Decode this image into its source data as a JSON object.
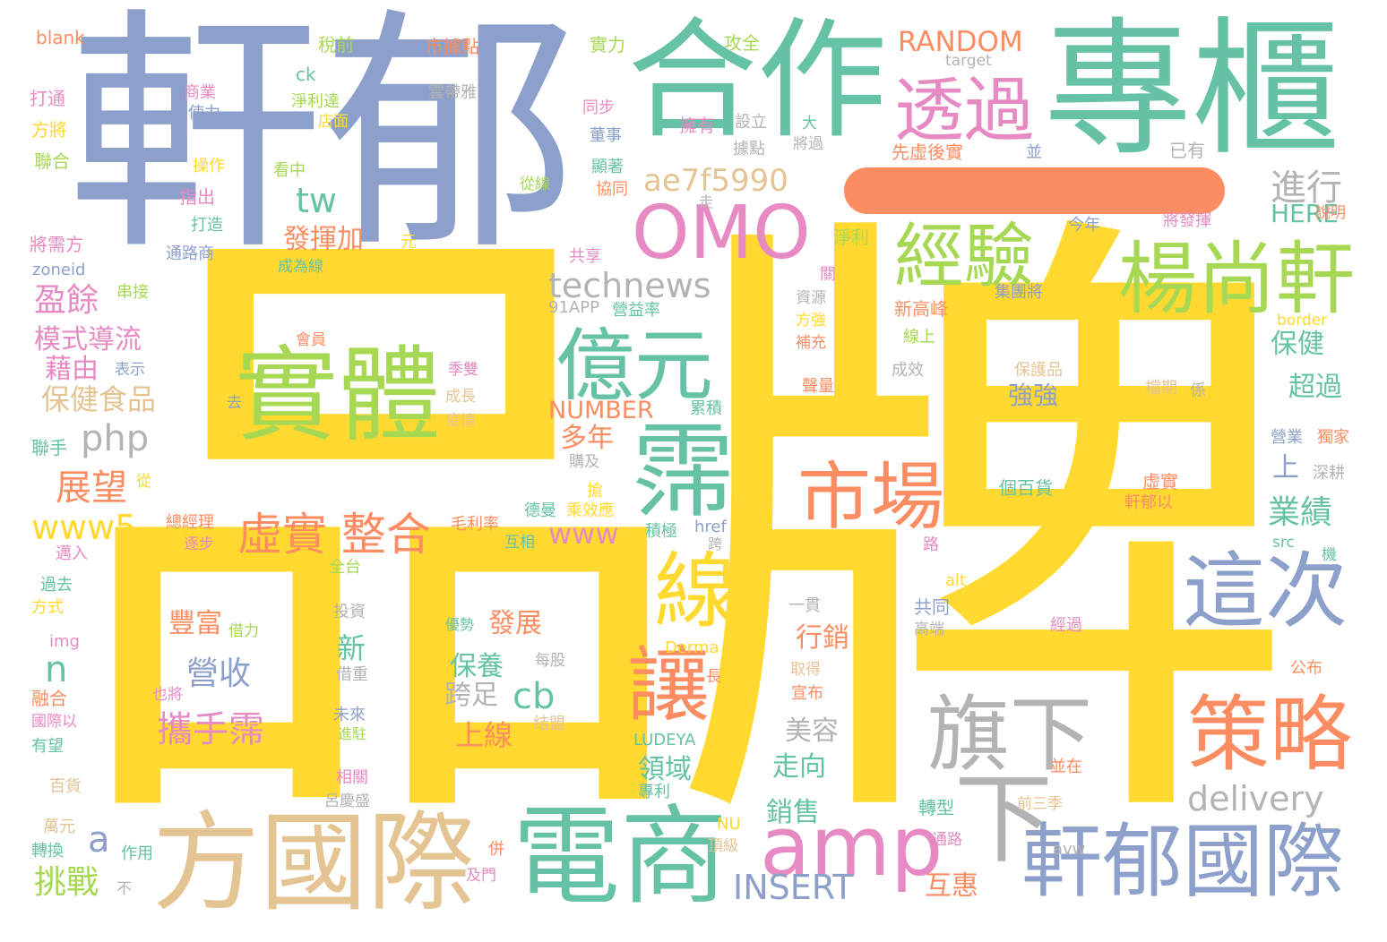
{
  "colors": {
    "background": "#ffffff",
    "yellow": "#FFD92F",
    "blue": "#8DA0CB",
    "teal": "#66C2A5",
    "orange": "#FC8D62",
    "pink": "#E78AC3",
    "green": "#A6D854",
    "tan": "#E5C494",
    "gray": "#B3B3B3"
  },
  "words": [
    {
      "text": "品牌",
      "color": "#FFD92F"
    },
    {
      "text": "軒郁",
      "color": "#8DA0CB"
    },
    {
      "text": "合作",
      "color": "#66C2A5"
    },
    {
      "text": "專櫃",
      "color": "#66C2A5"
    },
    {
      "text": "一",
      "color": "#FC8D62"
    },
    {
      "text": "實體",
      "color": "#A6D854"
    },
    {
      "text": "OMO",
      "color": "#E78AC3"
    },
    {
      "text": "透過",
      "color": "#E78AC3"
    },
    {
      "text": "經驗",
      "color": "#A6D854"
    },
    {
      "text": "楊尚軒",
      "color": "#A6D854"
    },
    {
      "text": "億元",
      "color": "#66C2A5"
    },
    {
      "text": "霈",
      "color": "#66C2A5"
    },
    {
      "text": "方國際",
      "color": "#E5C494"
    },
    {
      "text": "電商",
      "color": "#66C2A5"
    },
    {
      "text": "軒郁國際",
      "color": "#8DA0CB"
    },
    {
      "text": "策略",
      "color": "#FC8D62"
    },
    {
      "text": "旗下",
      "color": "#B3B3B3"
    },
    {
      "text": "這次",
      "color": "#8DA0CB"
    },
    {
      "text": "市場",
      "color": "#FC8D62"
    },
    {
      "text": "線",
      "color": "#FFD92F"
    },
    {
      "text": "讓",
      "color": "#FC8D62"
    },
    {
      "text": "amp",
      "color": "#E78AC3"
    },
    {
      "text": "下",
      "color": "#B3B3B3"
    },
    {
      "text": "虛實 整合",
      "color": "#FC8D62"
    },
    {
      "text": "ae7f5990",
      "color": "#E5C494"
    },
    {
      "text": "進行",
      "color": "#B3B3B3"
    },
    {
      "text": "technews",
      "color": "#B3B3B3"
    },
    {
      "text": "RANDOM",
      "color": "#FC8D62"
    },
    {
      "text": "delivery",
      "color": "#B3B3B3"
    },
    {
      "text": "INSERT",
      "color": "#8DA0CB"
    },
    {
      "text": "www5",
      "color": "#FFD92F"
    },
    {
      "text": "www",
      "color": "#E78AC3"
    },
    {
      "text": "php",
      "color": "#B3B3B3"
    },
    {
      "text": "tw",
      "color": "#66C2A5"
    },
    {
      "text": "cb",
      "color": "#66C2A5"
    },
    {
      "text": "n",
      "color": "#66C2A5"
    },
    {
      "text": "a",
      "color": "#8DA0CB"
    },
    {
      "text": "發揮加",
      "color": "#FC8D62"
    },
    {
      "text": "盈餘",
      "color": "#E78AC3"
    },
    {
      "text": "模式導流",
      "color": "#E78AC3"
    },
    {
      "text": "藉由",
      "color": "#E78AC3"
    },
    {
      "text": "保健食品",
      "color": "#E5C494"
    },
    {
      "text": "展望",
      "color": "#FC8D62"
    },
    {
      "text": "挑戰",
      "color": "#A6D854"
    },
    {
      "text": "營收",
      "color": "#8DA0CB"
    },
    {
      "text": "攜手霈",
      "color": "#E78AC3"
    },
    {
      "text": "豐富",
      "color": "#FC8D62"
    },
    {
      "text": "發展",
      "color": "#FC8D62"
    },
    {
      "text": "保養",
      "color": "#66C2A5"
    },
    {
      "text": "跨足",
      "color": "#B3B3B3"
    },
    {
      "text": "上線",
      "color": "#FC8D62"
    },
    {
      "text": "新",
      "color": "#66C2A5"
    },
    {
      "text": "行銷",
      "color": "#FC8D62"
    },
    {
      "text": "美容",
      "color": "#B3B3B3"
    },
    {
      "text": "走向",
      "color": "#66C2A5"
    },
    {
      "text": "銷售",
      "color": "#66C2A5"
    },
    {
      "text": "領域",
      "color": "#66C2A5"
    },
    {
      "text": "互惠",
      "color": "#FC8D62"
    },
    {
      "text": "多年",
      "color": "#FC8D62"
    },
    {
      "text": "NUMBER",
      "color": "#FC8D62"
    },
    {
      "text": "業績",
      "color": "#66C2A5"
    },
    {
      "text": "上",
      "color": "#8DA0CB"
    },
    {
      "text": "超過",
      "color": "#66C2A5"
    },
    {
      "text": "保健",
      "color": "#66C2A5"
    },
    {
      "text": "HERE",
      "color": "#66C2A5"
    },
    {
      "text": "強強",
      "color": "#8DA0CB"
    },
    {
      "text": "個百貨",
      "color": "#66C2A5"
    },
    {
      "text": "虛實",
      "color": "#FC8D62"
    },
    {
      "text": "軒郁以",
      "color": "#FC8D62"
    },
    {
      "text": "保護品",
      "color": "#E5C494"
    },
    {
      "text": "檔期",
      "color": "#E5C494"
    },
    {
      "text": "係",
      "color": "#B3B3B3"
    },
    {
      "text": "blank",
      "color": "#FC8D62"
    },
    {
      "text": "打通",
      "color": "#E78AC3"
    },
    {
      "text": "方將",
      "color": "#FFD92F"
    },
    {
      "text": "聯合",
      "color": "#A6D854"
    },
    {
      "text": "zoneid",
      "color": "#8DA0CB"
    },
    {
      "text": "將需方",
      "color": "#E78AC3"
    },
    {
      "text": "稅前",
      "color": "#A6D854"
    },
    {
      "text": "市據點",
      "color": "#FC8D62"
    },
    {
      "text": "實力",
      "color": "#A6D854"
    },
    {
      "text": "攻全",
      "color": "#A6D854"
    },
    {
      "text": "target",
      "color": "#B3B3B3"
    },
    {
      "text": "ck",
      "color": "#66C2A5"
    },
    {
      "text": "雲帶雅",
      "color": "#B3B3B3"
    },
    {
      "text": "商業",
      "color": "#E78AC3"
    },
    {
      "text": "使力",
      "color": "#8DA0CB"
    },
    {
      "text": "淨利達",
      "color": "#A6D854"
    },
    {
      "text": "店面",
      "color": "#FFD92F"
    },
    {
      "text": "操作",
      "color": "#FFD92F"
    },
    {
      "text": "看中",
      "color": "#A6D854"
    },
    {
      "text": "指出",
      "color": "#E78AC3"
    },
    {
      "text": "打造",
      "color": "#66C2A5"
    },
    {
      "text": "通路商",
      "color": "#8DA0CB"
    },
    {
      "text": "元",
      "color": "#FFD92F"
    },
    {
      "text": "成為線",
      "color": "#66C2A5"
    },
    {
      "text": "串接",
      "color": "#A6D854"
    },
    {
      "text": "同步",
      "color": "#E78AC3"
    },
    {
      "text": "董事",
      "color": "#8DA0CB"
    },
    {
      "text": "擁有",
      "color": "#E78AC3"
    },
    {
      "text": "設立",
      "color": "#B3B3B3"
    },
    {
      "text": "大",
      "color": "#66C2A5"
    },
    {
      "text": "據點",
      "color": "#B3B3B3"
    },
    {
      "text": "將過",
      "color": "#B3B3B3"
    },
    {
      "text": "先虛後實",
      "color": "#FC8D62"
    },
    {
      "text": "並",
      "color": "#8DA0CB"
    },
    {
      "text": "已有",
      "color": "#B3B3B3"
    },
    {
      "text": "顯著",
      "color": "#66C2A5"
    },
    {
      "text": "協同",
      "color": "#FC8D62"
    },
    {
      "text": "從線",
      "color": "#A6D854"
    },
    {
      "text": "走",
      "color": "#B3B3B3"
    },
    {
      "text": "今年",
      "color": "#8DA0CB"
    },
    {
      "text": "將發揮",
      "color": "#E78AC3"
    },
    {
      "text": "說明",
      "color": "#FC8D62"
    },
    {
      "text": "共享",
      "color": "#E78AC3"
    },
    {
      "text": "淨利",
      "color": "#A6D854"
    },
    {
      "text": "關",
      "color": "#E78AC3"
    },
    {
      "text": "資源",
      "color": "#B3B3B3"
    },
    {
      "text": "集團將",
      "color": "#8DA0CB"
    },
    {
      "text": "新高峰",
      "color": "#FC8D62"
    },
    {
      "text": "91APP",
      "color": "#B3B3B3"
    },
    {
      "text": "營益率",
      "color": "#66C2A5"
    },
    {
      "text": "方強",
      "color": "#FFD92F"
    },
    {
      "text": "補充",
      "color": "#FC8D62"
    },
    {
      "text": "線上",
      "color": "#A6D854"
    },
    {
      "text": "border",
      "color": "#FFD92F"
    },
    {
      "text": "成效",
      "color": "#B3B3B3"
    },
    {
      "text": "聲量",
      "color": "#FC8D62"
    },
    {
      "text": "會員",
      "color": "#FC8D62"
    },
    {
      "text": "表示",
      "color": "#8DA0CB"
    },
    {
      "text": "季雙",
      "color": "#E78AC3"
    },
    {
      "text": "成長",
      "color": "#E5C494"
    },
    {
      "text": "疫情",
      "color": "#E5C494"
    },
    {
      "text": "去",
      "color": "#8DA0CB"
    },
    {
      "text": "累積",
      "color": "#66C2A5"
    },
    {
      "text": "購及",
      "color": "#B3B3B3"
    },
    {
      "text": "營業",
      "color": "#8DA0CB"
    },
    {
      "text": "獨家",
      "color": "#FC8D62"
    },
    {
      "text": "深耕",
      "color": "#B3B3B3"
    },
    {
      "text": "聯手",
      "color": "#66C2A5"
    },
    {
      "text": "從",
      "color": "#FFD92F"
    },
    {
      "text": "搶",
      "color": "#FFD92F"
    },
    {
      "text": "德曼",
      "color": "#66C2A5"
    },
    {
      "text": "乘效應",
      "color": "#FFD92F"
    },
    {
      "text": "積極",
      "color": "#66C2A5"
    },
    {
      "text": "href",
      "color": "#8DA0CB"
    },
    {
      "text": "跨",
      "color": "#B3B3B3"
    },
    {
      "text": "總經理",
      "color": "#FC8D62"
    },
    {
      "text": "逐步",
      "color": "#E78AC3"
    },
    {
      "text": "毛利率",
      "color": "#FC8D62"
    },
    {
      "text": "互相",
      "color": "#66C2A5"
    },
    {
      "text": "邁入",
      "color": "#E78AC3"
    },
    {
      "text": "全台",
      "color": "#A6D854"
    },
    {
      "text": "路",
      "color": "#E78AC3"
    },
    {
      "text": "src",
      "color": "#66C2A5"
    },
    {
      "text": "機",
      "color": "#66C2A5"
    },
    {
      "text": "過去",
      "color": "#66C2A5"
    },
    {
      "text": "方式",
      "color": "#FFD92F"
    },
    {
      "text": "投資",
      "color": "#B3B3B3"
    },
    {
      "text": "借力",
      "color": "#A6D854"
    },
    {
      "text": "優勢",
      "color": "#66C2A5"
    },
    {
      "text": "每股",
      "color": "#B3B3B3"
    },
    {
      "text": "alt",
      "color": "#FFD92F"
    },
    {
      "text": "一貫",
      "color": "#B3B3B3"
    },
    {
      "text": "共同",
      "color": "#8DA0CB"
    },
    {
      "text": "高端",
      "color": "#B3B3B3"
    },
    {
      "text": "經過",
      "color": "#E78AC3"
    },
    {
      "text": "公布",
      "color": "#FC8D62"
    },
    {
      "text": "img",
      "color": "#E78AC3"
    },
    {
      "text": "融合",
      "color": "#FC8D62"
    },
    {
      "text": "國際以",
      "color": "#E78AC3"
    },
    {
      "text": "有望",
      "color": "#66C2A5"
    },
    {
      "text": "也將",
      "color": "#E78AC3"
    },
    {
      "text": "借重",
      "color": "#B3B3B3"
    },
    {
      "text": "未來",
      "color": "#8DA0CB"
    },
    {
      "text": "進駐",
      "color": "#A6D854"
    },
    {
      "text": "結盟",
      "color": "#E5C494"
    },
    {
      "text": "長",
      "color": "#FC8D62"
    },
    {
      "text": "Derma",
      "color": "#FFD92F"
    },
    {
      "text": "取得",
      "color": "#E5C494"
    },
    {
      "text": "宣布",
      "color": "#FC8D62"
    },
    {
      "text": "LUDEYA",
      "color": "#66C2A5"
    },
    {
      "text": "專利",
      "color": "#66C2A5"
    },
    {
      "text": "並在",
      "color": "#FC8D62"
    },
    {
      "text": "前三季",
      "color": "#E5C494"
    },
    {
      "text": "轉型",
      "color": "#66C2A5"
    },
    {
      "text": "百貨",
      "color": "#E5C494"
    },
    {
      "text": "萬元",
      "color": "#E5C494"
    },
    {
      "text": "轉換",
      "color": "#66C2A5"
    },
    {
      "text": "作用",
      "color": "#66C2A5"
    },
    {
      "text": "不",
      "color": "#B3B3B3"
    },
    {
      "text": "相關",
      "color": "#E78AC3"
    },
    {
      "text": "呂慶盛",
      "color": "#B3B3B3"
    },
    {
      "text": "併",
      "color": "#FC8D62"
    },
    {
      "text": "及門",
      "color": "#E78AC3"
    },
    {
      "text": "NU",
      "color": "#FFD92F"
    },
    {
      "text": "頂級",
      "color": "#E5C494"
    },
    {
      "text": "通路",
      "color": "#E78AC3"
    },
    {
      "text": "avw",
      "color": "#B3B3B3"
    }
  ]
}
